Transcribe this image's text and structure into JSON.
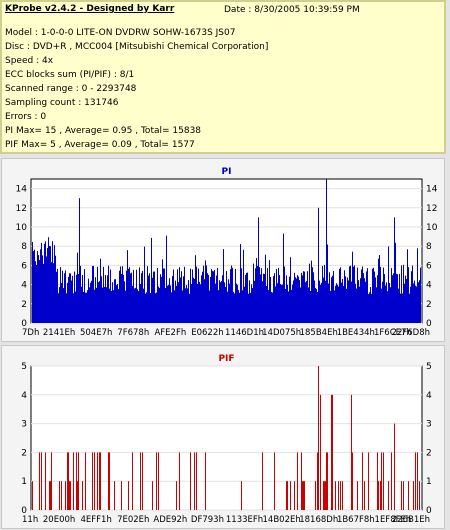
{
  "info": {
    "title": "KProbe v2.4.2 - Designed by Karr",
    "date": "Date : 8/30/2005 10:39:59 PM",
    "lines": [
      "Model : 1-0-0-0 LITE-ON DVDRW SOHW-1673S JS07",
      "Disc : DVD+R , MCC004 [Mitsubishi Chemical Corporation]",
      "Speed : 4x",
      "ECC blocks sum (PI/PIF) : 8/1",
      "Scanned range : 0 - 2293748",
      "Sampling count : 131746",
      "Errors : 0",
      "PI Max= 15 , Average= 0.95 , Total= 15838",
      "PIF Max= 5 , Average= 0.09 , Total= 1577"
    ]
  },
  "chart_data": [
    {
      "type": "bar",
      "title": "PI",
      "color": "#0000cc",
      "ylim": [
        0,
        15
      ],
      "yticks": [
        0,
        2,
        4,
        6,
        8,
        10,
        12,
        14
      ],
      "xtick_labels": [
        "7Dh",
        "2141Eh",
        "504E7h",
        "7F678h",
        "AFE2Fh",
        "E0622h",
        "1146D1h",
        "14D075h",
        "185B4Eh",
        "1BE434h",
        "1F6CE7h",
        "22F6D8h"
      ],
      "grid": true,
      "max": 15,
      "average": 0.95,
      "peaks": [
        {
          "pos": 0.12,
          "value": 13
        },
        {
          "pos": 0.58,
          "value": 11
        },
        {
          "pos": 0.735,
          "value": 12
        },
        {
          "pos": 0.755,
          "value": 15
        },
        {
          "pos": 0.93,
          "value": 11
        }
      ]
    },
    {
      "type": "bar",
      "title": "PIF",
      "color": "#cc0000",
      "ylim": [
        0,
        5
      ],
      "yticks": [
        0,
        1,
        2,
        3,
        4,
        5
      ],
      "xtick_labels": [
        "11h",
        "20E00h",
        "4EFF1h",
        "7E02Eh",
        "ADE92h",
        "DF793h",
        "1133EFh",
        "14B02Eh",
        "18168Dh",
        "1B67F8h",
        "1EF8FEh",
        "226B1Eh"
      ],
      "grid": true,
      "max": 5,
      "average": 0.09,
      "peaks": [
        {
          "pos": 0.735,
          "value": 5
        },
        {
          "pos": 0.74,
          "value": 4
        },
        {
          "pos": 0.77,
          "value": 4
        },
        {
          "pos": 0.82,
          "value": 4
        },
        {
          "pos": 0.93,
          "value": 3
        }
      ]
    }
  ]
}
